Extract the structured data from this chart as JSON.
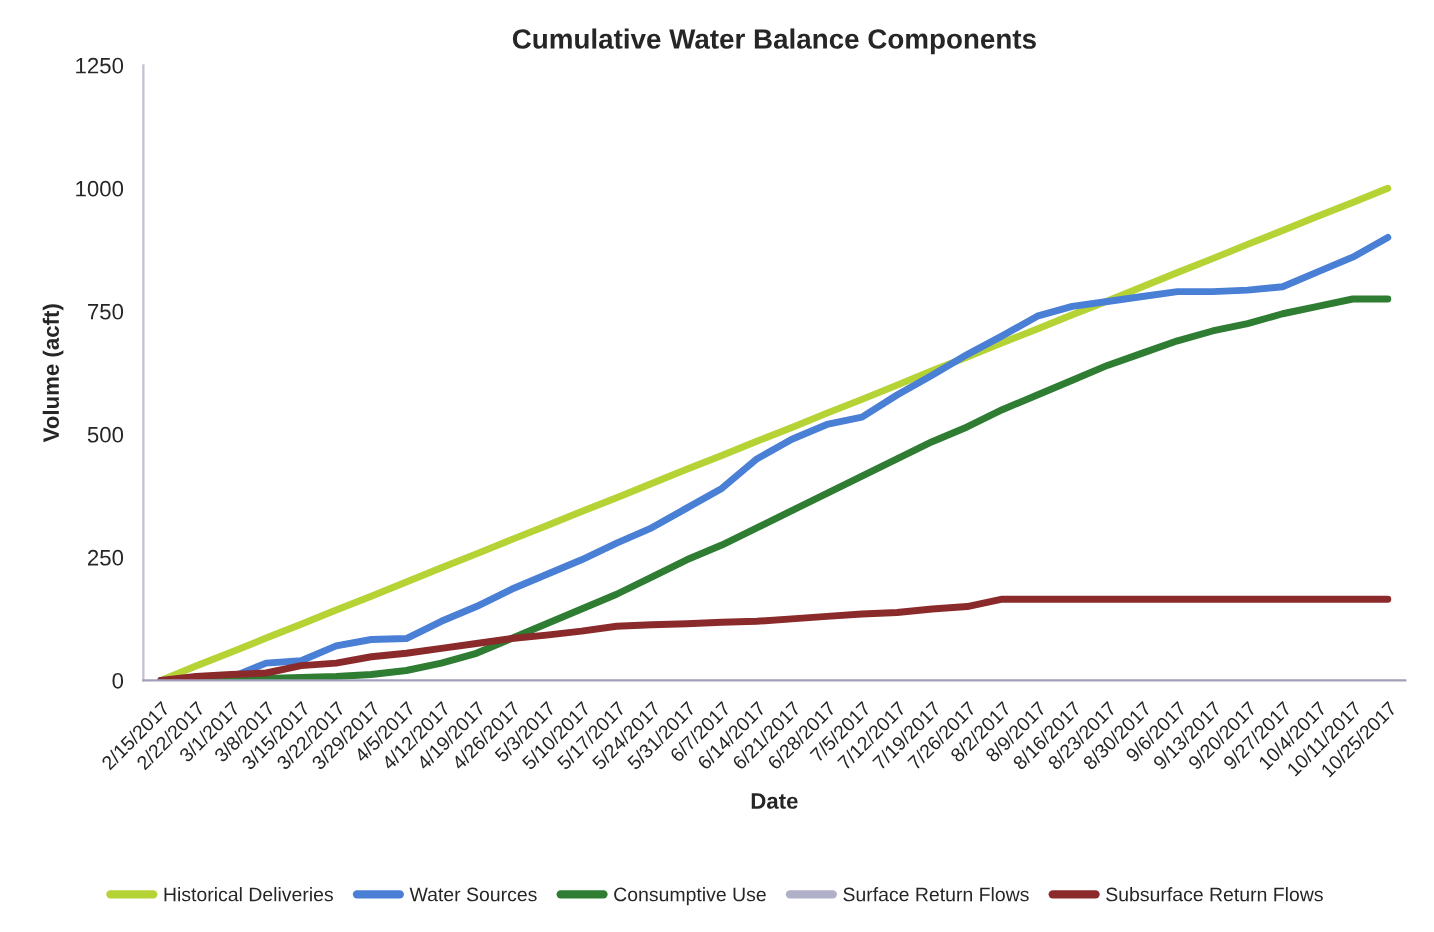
{
  "chart_data": {
    "type": "line",
    "title": "Cumulative Water Balance Components",
    "xlabel": "Date",
    "ylabel": "Volume (acft)",
    "categories": [
      "2/15/2017",
      "2/22/2017",
      "3/1/2017",
      "3/8/2017",
      "3/15/2017",
      "3/22/2017",
      "3/29/2017",
      "4/5/2017",
      "4/12/2017",
      "4/19/2017",
      "4/26/2017",
      "5/3/2017",
      "5/10/2017",
      "5/17/2017",
      "5/24/2017",
      "5/31/2017",
      "6/7/2017",
      "6/14/2017",
      "6/21/2017",
      "6/28/2017",
      "7/5/2017",
      "7/12/2017",
      "7/19/2017",
      "7/26/2017",
      "8/2/2017",
      "8/9/2017",
      "8/16/2017",
      "8/23/2017",
      "8/30/2017",
      "9/6/2017",
      "9/13/2017",
      "9/20/2017",
      "9/27/2017",
      "10/4/2017",
      "10/11/2017",
      "10/25/2017"
    ],
    "series": [
      {
        "name": "Historical Deliveries",
        "color": "#b5d334",
        "values": [
          0,
          29,
          57,
          86,
          114,
          143,
          171,
          200,
          229,
          257,
          286,
          314,
          343,
          371,
          400,
          429,
          457,
          486,
          514,
          543,
          571,
          600,
          629,
          657,
          686,
          714,
          743,
          771,
          800,
          829,
          857,
          886,
          914,
          943,
          971,
          1000
        ]
      },
      {
        "name": "Water Sources",
        "color": "#4a7fd6",
        "values": [
          0,
          3,
          6,
          35,
          40,
          70,
          83,
          85,
          120,
          150,
          185,
          215,
          245,
          279,
          310,
          350,
          390,
          450,
          490,
          520,
          535,
          580,
          620,
          662,
          700,
          740,
          760,
          770,
          780,
          790,
          790,
          793,
          800,
          830,
          860,
          900
        ]
      },
      {
        "name": "Consumptive Use",
        "color": "#2e7d32",
        "values": [
          0,
          0,
          2,
          4,
          6,
          8,
          12,
          20,
          35,
          55,
          85,
          115,
          145,
          175,
          210,
          245,
          275,
          310,
          345,
          380,
          415,
          450,
          485,
          515,
          550,
          580,
          610,
          640,
          665,
          690,
          710,
          725,
          745,
          760,
          775,
          775
        ]
      },
      {
        "name": "Surface Return Flows",
        "color": "#b0b0c8",
        "values": [
          null,
          null,
          null,
          null,
          null,
          null,
          null,
          null,
          null,
          null,
          null,
          null,
          null,
          null,
          null,
          null,
          null,
          null,
          null,
          null,
          null,
          null,
          null,
          null,
          null,
          null,
          null,
          null,
          null,
          null,
          null,
          null,
          null,
          null,
          null,
          null
        ]
      },
      {
        "name": "Subsurface Return Flows",
        "color": "#8b2a2a",
        "values": [
          0,
          8,
          12,
          15,
          30,
          35,
          48,
          55,
          65,
          75,
          85,
          92,
          100,
          110,
          113,
          115,
          118,
          120,
          125,
          130,
          135,
          138,
          145,
          150,
          165,
          165,
          165,
          165,
          165,
          165,
          165,
          165,
          165,
          165,
          165,
          165
        ]
      }
    ],
    "ylim": [
      0,
      1250
    ],
    "yticks": [
      0,
      250,
      500,
      750,
      1000,
      1250
    ],
    "grid": false,
    "legend": "bottom",
    "marker": "none",
    "line_style": "solid"
  }
}
